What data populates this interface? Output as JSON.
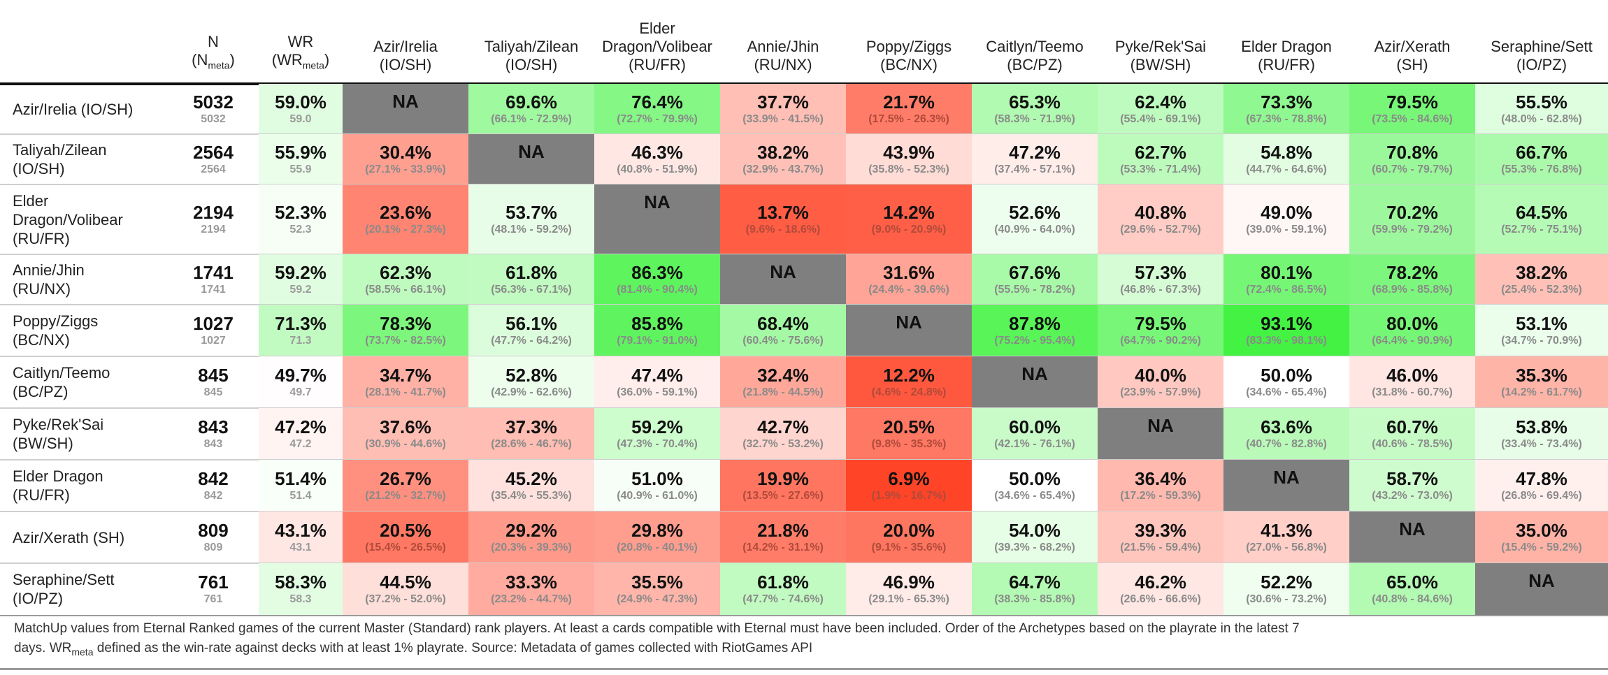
{
  "chart_data": {
    "type": "table",
    "columns": [
      {
        "l1": "N",
        "l2": "(N",
        "l2sub": "meta",
        "l2end": ")"
      },
      {
        "l1": "WR",
        "l2": "(WR",
        "l2sub": "meta",
        "l2end": ")"
      },
      {
        "l1": "Azir/Irelia",
        "l2": "(IO/SH)"
      },
      {
        "l1": "Taliyah/Zilean",
        "l2": "(IO/SH)"
      },
      {
        "l0": "Elder",
        "l1": "Dragon/Volibear",
        "l2": "(RU/FR)"
      },
      {
        "l1": "Annie/Jhin",
        "l2": "(RU/NX)"
      },
      {
        "l1": "Poppy/Ziggs",
        "l2": "(BC/NX)"
      },
      {
        "l1": "Caitlyn/Teemo",
        "l2": "(BC/PZ)"
      },
      {
        "l1": "Pyke/Rek'Sai",
        "l2": "(BW/SH)"
      },
      {
        "l1": "Elder Dragon",
        "l2": "(RU/FR)"
      },
      {
        "l1": "Azir/Xerath",
        "l2": "(SH)"
      },
      {
        "l1": "Seraphine/Sett",
        "l2": "(IO/PZ)"
      }
    ],
    "rows": [
      {
        "label": "Azir/Irelia (IO/SH)",
        "n": "5032",
        "n_sub": "5032",
        "wr": "59.0%",
        "wr_sub": "59.0",
        "cells": [
          {
            "v": null,
            "t": "NA",
            "ci": ""
          },
          {
            "v": 69.6,
            "t": "69.6%",
            "ci": "(66.1% - 72.9%)"
          },
          {
            "v": 76.4,
            "t": "76.4%",
            "ci": "(72.7% - 79.9%)"
          },
          {
            "v": 37.7,
            "t": "37.7%",
            "ci": "(33.9% - 41.5%)"
          },
          {
            "v": 21.7,
            "t": "21.7%",
            "ci": "(17.5% - 26.3%)"
          },
          {
            "v": 65.3,
            "t": "65.3%",
            "ci": "(58.3% - 71.9%)"
          },
          {
            "v": 62.4,
            "t": "62.4%",
            "ci": "(55.4% - 69.1%)"
          },
          {
            "v": 73.3,
            "t": "73.3%",
            "ci": "(67.3% - 78.8%)"
          },
          {
            "v": 79.5,
            "t": "79.5%",
            "ci": "(73.5% - 84.6%)"
          },
          {
            "v": 55.5,
            "t": "55.5%",
            "ci": "(48.0% - 62.8%)"
          }
        ]
      },
      {
        "label": "Taliyah/Zilean\n(IO/SH)",
        "n": "2564",
        "n_sub": "2564",
        "wr": "55.9%",
        "wr_sub": "55.9",
        "cells": [
          {
            "v": 30.4,
            "t": "30.4%",
            "ci": "(27.1% - 33.9%)"
          },
          {
            "v": null,
            "t": "NA",
            "ci": ""
          },
          {
            "v": 46.3,
            "t": "46.3%",
            "ci": "(40.8% - 51.9%)"
          },
          {
            "v": 38.2,
            "t": "38.2%",
            "ci": "(32.9% - 43.7%)"
          },
          {
            "v": 43.9,
            "t": "43.9%",
            "ci": "(35.8% - 52.3%)"
          },
          {
            "v": 47.2,
            "t": "47.2%",
            "ci": "(37.4% - 57.1%)"
          },
          {
            "v": 62.7,
            "t": "62.7%",
            "ci": "(53.3% - 71.4%)"
          },
          {
            "v": 54.8,
            "t": "54.8%",
            "ci": "(44.7% - 64.6%)"
          },
          {
            "v": 70.8,
            "t": "70.8%",
            "ci": "(60.7% - 79.7%)"
          },
          {
            "v": 66.7,
            "t": "66.7%",
            "ci": "(55.3% - 76.8%)"
          }
        ]
      },
      {
        "label": "Elder\nDragon/Volibear\n(RU/FR)",
        "n": "2194",
        "n_sub": "2194",
        "wr": "52.3%",
        "wr_sub": "52.3",
        "cells": [
          {
            "v": 23.6,
            "t": "23.6%",
            "ci": "(20.1% - 27.3%)"
          },
          {
            "v": 53.7,
            "t": "53.7%",
            "ci": "(48.1% - 59.2%)"
          },
          {
            "v": null,
            "t": "NA",
            "ci": ""
          },
          {
            "v": 13.7,
            "t": "13.7%",
            "ci": "(9.6% - 18.6%)"
          },
          {
            "v": 14.2,
            "t": "14.2%",
            "ci": "(9.0% - 20.9%)"
          },
          {
            "v": 52.6,
            "t": "52.6%",
            "ci": "(40.9% - 64.0%)"
          },
          {
            "v": 40.8,
            "t": "40.8%",
            "ci": "(29.6% - 52.7%)"
          },
          {
            "v": 49.0,
            "t": "49.0%",
            "ci": "(39.0% - 59.1%)"
          },
          {
            "v": 70.2,
            "t": "70.2%",
            "ci": "(59.9% - 79.2%)"
          },
          {
            "v": 64.5,
            "t": "64.5%",
            "ci": "(52.7% - 75.1%)"
          }
        ]
      },
      {
        "label": "Annie/Jhin\n(RU/NX)",
        "n": "1741",
        "n_sub": "1741",
        "wr": "59.2%",
        "wr_sub": "59.2",
        "cells": [
          {
            "v": 62.3,
            "t": "62.3%",
            "ci": "(58.5% - 66.1%)"
          },
          {
            "v": 61.8,
            "t": "61.8%",
            "ci": "(56.3% - 67.1%)"
          },
          {
            "v": 86.3,
            "t": "86.3%",
            "ci": "(81.4% - 90.4%)"
          },
          {
            "v": null,
            "t": "NA",
            "ci": ""
          },
          {
            "v": 31.6,
            "t": "31.6%",
            "ci": "(24.4% - 39.6%)"
          },
          {
            "v": 67.6,
            "t": "67.6%",
            "ci": "(55.5% - 78.2%)"
          },
          {
            "v": 57.3,
            "t": "57.3%",
            "ci": "(46.8% - 67.3%)"
          },
          {
            "v": 80.1,
            "t": "80.1%",
            "ci": "(72.4% - 86.5%)"
          },
          {
            "v": 78.2,
            "t": "78.2%",
            "ci": "(68.9% - 85.8%)"
          },
          {
            "v": 38.2,
            "t": "38.2%",
            "ci": "(25.4% - 52.3%)"
          }
        ]
      },
      {
        "label": "Poppy/Ziggs\n(BC/NX)",
        "n": "1027",
        "n_sub": "1027",
        "wr": "71.3%",
        "wr_sub": "71.3",
        "cells": [
          {
            "v": 78.3,
            "t": "78.3%",
            "ci": "(73.7% - 82.5%)"
          },
          {
            "v": 56.1,
            "t": "56.1%",
            "ci": "(47.7% - 64.2%)"
          },
          {
            "v": 85.8,
            "t": "85.8%",
            "ci": "(79.1% - 91.0%)"
          },
          {
            "v": 68.4,
            "t": "68.4%",
            "ci": "(60.4% - 75.6%)"
          },
          {
            "v": null,
            "t": "NA",
            "ci": ""
          },
          {
            "v": 87.8,
            "t": "87.8%",
            "ci": "(75.2% - 95.4%)"
          },
          {
            "v": 79.5,
            "t": "79.5%",
            "ci": "(64.7% - 90.2%)"
          },
          {
            "v": 93.1,
            "t": "93.1%",
            "ci": "(83.3% - 98.1%)"
          },
          {
            "v": 80.0,
            "t": "80.0%",
            "ci": "(64.4% - 90.9%)"
          },
          {
            "v": 53.1,
            "t": "53.1%",
            "ci": "(34.7% - 70.9%)"
          }
        ]
      },
      {
        "label": "Caitlyn/Teemo\n(BC/PZ)",
        "n": "845",
        "n_sub": "845",
        "wr": "49.7%",
        "wr_sub": "49.7",
        "cells": [
          {
            "v": 34.7,
            "t": "34.7%",
            "ci": "(28.1% - 41.7%)"
          },
          {
            "v": 52.8,
            "t": "52.8%",
            "ci": "(42.9% - 62.6%)"
          },
          {
            "v": 47.4,
            "t": "47.4%",
            "ci": "(36.0% - 59.1%)"
          },
          {
            "v": 32.4,
            "t": "32.4%",
            "ci": "(21.8% - 44.5%)"
          },
          {
            "v": 12.2,
            "t": "12.2%",
            "ci": "(4.6% - 24.8%)"
          },
          {
            "v": null,
            "t": "NA",
            "ci": ""
          },
          {
            "v": 40.0,
            "t": "40.0%",
            "ci": "(23.9% - 57.9%)"
          },
          {
            "v": 50.0,
            "t": "50.0%",
            "ci": "(34.6% - 65.4%)"
          },
          {
            "v": 46.0,
            "t": "46.0%",
            "ci": "(31.8% - 60.7%)"
          },
          {
            "v": 35.3,
            "t": "35.3%",
            "ci": "(14.2% - 61.7%)"
          }
        ]
      },
      {
        "label": "Pyke/Rek'Sai\n(BW/SH)",
        "n": "843",
        "n_sub": "843",
        "wr": "47.2%",
        "wr_sub": "47.2",
        "cells": [
          {
            "v": 37.6,
            "t": "37.6%",
            "ci": "(30.9% - 44.6%)"
          },
          {
            "v": 37.3,
            "t": "37.3%",
            "ci": "(28.6% - 46.7%)"
          },
          {
            "v": 59.2,
            "t": "59.2%",
            "ci": "(47.3% - 70.4%)"
          },
          {
            "v": 42.7,
            "t": "42.7%",
            "ci": "(32.7% - 53.2%)"
          },
          {
            "v": 20.5,
            "t": "20.5%",
            "ci": "(9.8% - 35.3%)"
          },
          {
            "v": 60.0,
            "t": "60.0%",
            "ci": "(42.1% - 76.1%)"
          },
          {
            "v": null,
            "t": "NA",
            "ci": ""
          },
          {
            "v": 63.6,
            "t": "63.6%",
            "ci": "(40.7% - 82.8%)"
          },
          {
            "v": 60.7,
            "t": "60.7%",
            "ci": "(40.6% - 78.5%)"
          },
          {
            "v": 53.8,
            "t": "53.8%",
            "ci": "(33.4% - 73.4%)"
          }
        ]
      },
      {
        "label": "Elder Dragon\n(RU/FR)",
        "n": "842",
        "n_sub": "842",
        "wr": "51.4%",
        "wr_sub": "51.4",
        "cells": [
          {
            "v": 26.7,
            "t": "26.7%",
            "ci": "(21.2% - 32.7%)"
          },
          {
            "v": 45.2,
            "t": "45.2%",
            "ci": "(35.4% - 55.3%)"
          },
          {
            "v": 51.0,
            "t": "51.0%",
            "ci": "(40.9% - 61.0%)"
          },
          {
            "v": 19.9,
            "t": "19.9%",
            "ci": "(13.5% - 27.6%)"
          },
          {
            "v": 6.9,
            "t": "6.9%",
            "ci": "(1.9% - 16.7%)"
          },
          {
            "v": 50.0,
            "t": "50.0%",
            "ci": "(34.6% - 65.4%)"
          },
          {
            "v": 36.4,
            "t": "36.4%",
            "ci": "(17.2% - 59.3%)"
          },
          {
            "v": null,
            "t": "NA",
            "ci": ""
          },
          {
            "v": 58.7,
            "t": "58.7%",
            "ci": "(43.2% - 73.0%)"
          },
          {
            "v": 47.8,
            "t": "47.8%",
            "ci": "(26.8% - 69.4%)"
          }
        ]
      },
      {
        "label": "Azir/Xerath (SH)",
        "n": "809",
        "n_sub": "809",
        "wr": "43.1%",
        "wr_sub": "43.1",
        "cells": [
          {
            "v": 20.5,
            "t": "20.5%",
            "ci": "(15.4% - 26.5%)"
          },
          {
            "v": 29.2,
            "t": "29.2%",
            "ci": "(20.3% - 39.3%)"
          },
          {
            "v": 29.8,
            "t": "29.8%",
            "ci": "(20.8% - 40.1%)"
          },
          {
            "v": 21.8,
            "t": "21.8%",
            "ci": "(14.2% - 31.1%)"
          },
          {
            "v": 20.0,
            "t": "20.0%",
            "ci": "(9.1% - 35.6%)"
          },
          {
            "v": 54.0,
            "t": "54.0%",
            "ci": "(39.3% - 68.2%)"
          },
          {
            "v": 39.3,
            "t": "39.3%",
            "ci": "(21.5% - 59.4%)"
          },
          {
            "v": 41.3,
            "t": "41.3%",
            "ci": "(27.0% - 56.8%)"
          },
          {
            "v": null,
            "t": "NA",
            "ci": ""
          },
          {
            "v": 35.0,
            "t": "35.0%",
            "ci": "(15.4% - 59.2%)"
          }
        ]
      },
      {
        "label": "Seraphine/Sett\n(IO/PZ)",
        "n": "761",
        "n_sub": "761",
        "wr": "58.3%",
        "wr_sub": "58.3",
        "cells": [
          {
            "v": 44.5,
            "t": "44.5%",
            "ci": "(37.2% - 52.0%)"
          },
          {
            "v": 33.3,
            "t": "33.3%",
            "ci": "(23.2% - 44.7%)"
          },
          {
            "v": 35.5,
            "t": "35.5%",
            "ci": "(24.9% - 47.3%)"
          },
          {
            "v": 61.8,
            "t": "61.8%",
            "ci": "(47.7% - 74.6%)"
          },
          {
            "v": 46.9,
            "t": "46.9%",
            "ci": "(29.1% - 65.3%)"
          },
          {
            "v": 64.7,
            "t": "64.7%",
            "ci": "(38.3% - 85.8%)"
          },
          {
            "v": 46.2,
            "t": "46.2%",
            "ci": "(26.6% - 66.6%)"
          },
          {
            "v": 52.2,
            "t": "52.2%",
            "ci": "(30.6% - 73.2%)"
          },
          {
            "v": 65.0,
            "t": "65.0%",
            "ci": "(40.8% - 84.6%)"
          },
          {
            "v": null,
            "t": "NA",
            "ci": ""
          }
        ]
      }
    ],
    "colors": {
      "na_fill": "#7f7f7f",
      "high": "#3df23d",
      "mid": "#ffffff",
      "low": "#ff3d1f",
      "rule_heavy": "#111111",
      "rule_light": "#cfcfcf"
    }
  },
  "caption": {
    "line1": "MatchUp values from Eternal Ranked games of the current Master (Standard) rank players. At least a cards compatible with Eternal must have been included. Order of the Archetypes based on the playrate in the latest 7",
    "line2_pre": "days. WR",
    "line2_sub": "meta",
    "line2_post": " defined as the win-rate against decks with at least 1% playrate. Source: Metadata of games collected with RiotGames API"
  }
}
